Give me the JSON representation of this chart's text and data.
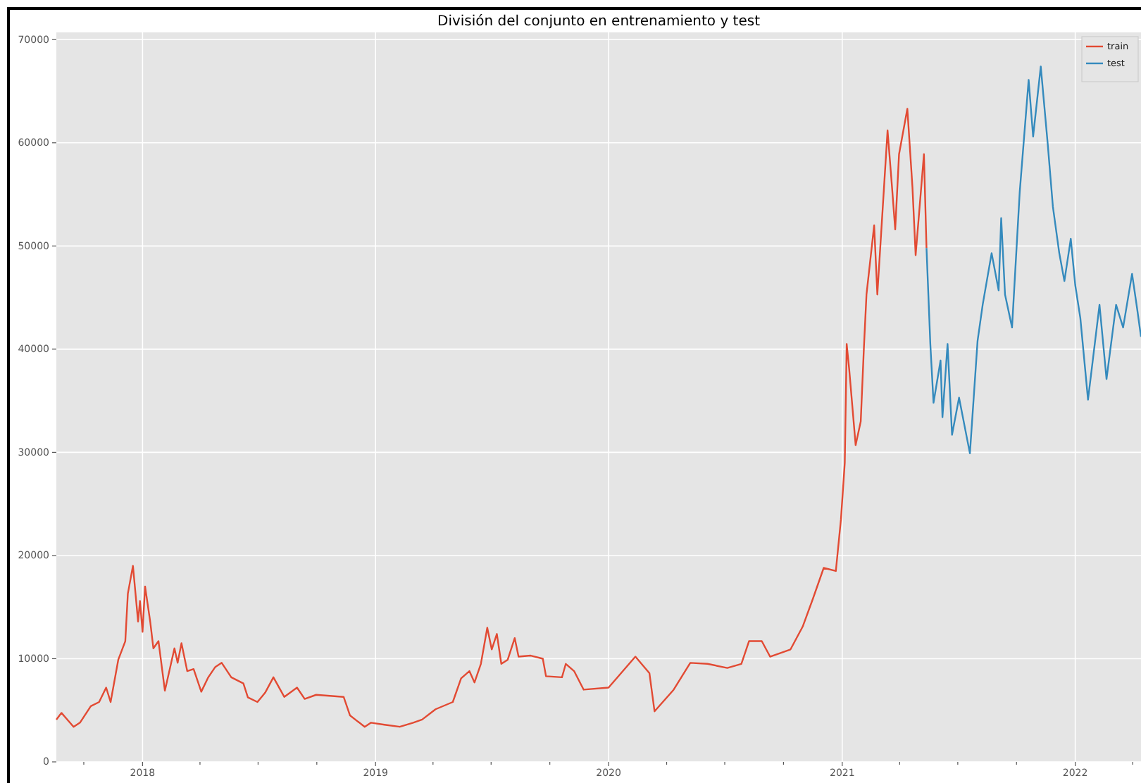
{
  "chart_data": {
    "type": "line",
    "title": "División del conjunto en entrenamiento y test",
    "xlim": [
      "2017-08-19",
      "2022-04-14"
    ],
    "xticks": [
      {
        "value": "2017-10-01",
        "label": null
      },
      {
        "value": "2018-01-01",
        "label": "2018"
      },
      {
        "value": "2018-04-01",
        "label": null
      },
      {
        "value": "2018-07-01",
        "label": null
      },
      {
        "value": "2018-10-01",
        "label": null
      },
      {
        "value": "2019-01-01",
        "label": "2019"
      },
      {
        "value": "2019-04-01",
        "label": null
      },
      {
        "value": "2019-07-01",
        "label": null
      },
      {
        "value": "2019-10-01",
        "label": null
      },
      {
        "value": "2020-01-01",
        "label": "2020"
      },
      {
        "value": "2020-04-01",
        "label": null
      },
      {
        "value": "2020-07-01",
        "label": null
      },
      {
        "value": "2020-10-01",
        "label": null
      },
      {
        "value": "2021-01-01",
        "label": "2021"
      },
      {
        "value": "2021-04-01",
        "label": null
      },
      {
        "value": "2021-07-01",
        "label": null
      },
      {
        "value": "2021-10-01",
        "label": null
      },
      {
        "value": "2022-01-01",
        "label": "2022"
      },
      {
        "value": "2022-04-01",
        "label": null
      }
    ],
    "ylim": [
      0,
      70700
    ],
    "yticks": [
      0,
      10000,
      20000,
      30000,
      40000,
      50000,
      60000,
      70000
    ],
    "grid": true,
    "legend": "top right",
    "line_style": "solid",
    "marker": "none",
    "series": [
      {
        "name": "train",
        "color": "#e24a33",
        "x": [
          "2017-08-19",
          "2017-08-27",
          "2017-09-15",
          "2017-09-25",
          "2017-10-12",
          "2017-10-25",
          "2017-11-05",
          "2017-11-12",
          "2017-11-24",
          "2017-12-05",
          "2017-12-09",
          "2017-12-17",
          "2017-12-25",
          "2017-12-28",
          "2018-01-01",
          "2018-01-05",
          "2018-01-13",
          "2018-01-18",
          "2018-01-26",
          "2018-02-05",
          "2018-02-20",
          "2018-02-25",
          "2018-03-03",
          "2018-03-12",
          "2018-03-22",
          "2018-04-03",
          "2018-04-14",
          "2018-04-25",
          "2018-05-05",
          "2018-05-20",
          "2018-06-08",
          "2018-06-15",
          "2018-06-30",
          "2018-07-12",
          "2018-07-25",
          "2018-08-11",
          "2018-08-31",
          "2018-09-12",
          "2018-09-30",
          "2018-11-12",
          "2018-11-22",
          "2018-12-15",
          "2018-12-25",
          "2019-01-15",
          "2019-02-08",
          "2019-03-01",
          "2019-03-15",
          "2019-04-05",
          "2019-05-02",
          "2019-05-15",
          "2019-05-28",
          "2019-06-05",
          "2019-06-15",
          "2019-06-25",
          "2019-07-02",
          "2019-07-10",
          "2019-07-17",
          "2019-07-27",
          "2019-08-07",
          "2019-08-13",
          "2019-09-01",
          "2019-09-20",
          "2019-09-25",
          "2019-10-20",
          "2019-10-26",
          "2019-11-08",
          "2019-11-23",
          "2020-01-01",
          "2020-02-12",
          "2020-03-05",
          "2020-03-13",
          "2020-04-12",
          "2020-05-08",
          "2020-06-04",
          "2020-07-05",
          "2020-07-27",
          "2020-08-08",
          "2020-08-28",
          "2020-09-10",
          "2020-10-12",
          "2020-10-31",
          "2020-11-16",
          "2020-12-03",
          "2020-12-22",
          "2020-12-30",
          "2021-01-05",
          "2021-01-08",
          "2021-01-12",
          "2021-01-22",
          "2021-01-30",
          "2021-02-04",
          "2021-02-08",
          "2021-02-20",
          "2021-02-25",
          "2021-03-13",
          "2021-03-20",
          "2021-03-25",
          "2021-03-31",
          "2021-04-13",
          "2021-04-21",
          "2021-04-26",
          "2021-05-09",
          "2021-05-13"
        ],
        "values": [
          4100,
          4750,
          3400,
          3800,
          5400,
          5800,
          7200,
          5800,
          9900,
          11700,
          16300,
          19000,
          13600,
          15600,
          12600,
          17000,
          13600,
          11000,
          11700,
          6900,
          11000,
          9600,
          11500,
          8800,
          9000,
          6800,
          8200,
          9200,
          9600,
          8200,
          7600,
          6250,
          5800,
          6700,
          8200,
          6300,
          7200,
          6100,
          6500,
          6300,
          4500,
          3400,
          3800,
          3600,
          3400,
          3800,
          4100,
          5100,
          5800,
          8100,
          8800,
          7700,
          9500,
          13000,
          10900,
          12400,
          9500,
          9900,
          12000,
          10200,
          10300,
          10000,
          8300,
          8200,
          9500,
          8800,
          7000,
          7200,
          10200,
          8600,
          4900,
          7000,
          9600,
          9500,
          9100,
          9500,
          11700,
          11700,
          10200,
          10900,
          13100,
          15800,
          18800,
          18500,
          23500,
          29000,
          40500,
          38000,
          30700,
          33000,
          40200,
          45300,
          52000,
          45300,
          61200,
          55700,
          51600,
          58900,
          63300,
          55700,
          49100,
          58900,
          49800
        ]
      },
      {
        "name": "test",
        "color": "#348abd",
        "x": [
          "2021-05-13",
          "2021-05-19",
          "2021-05-24",
          "2021-06-04",
          "2021-06-07",
          "2021-06-15",
          "2021-06-22",
          "2021-07-03",
          "2021-07-20",
          "2021-08-01",
          "2021-08-09",
          "2021-08-23",
          "2021-09-03",
          "2021-09-07",
          "2021-09-13",
          "2021-09-24",
          "2021-10-06",
          "2021-10-20",
          "2021-10-27",
          "2021-11-08",
          "2021-11-19",
          "2021-11-27",
          "2021-12-07",
          "2021-12-15",
          "2021-12-25",
          "2022-01-01",
          "2022-01-09",
          "2022-01-21",
          "2022-02-08",
          "2022-02-19",
          "2022-03-06",
          "2022-03-17",
          "2022-03-31",
          "2022-04-08",
          "2022-04-14"
        ],
        "values": [
          49800,
          40500,
          34800,
          38900,
          33400,
          40500,
          31700,
          35300,
          29900,
          40800,
          44300,
          49300,
          45700,
          52700,
          45300,
          42100,
          55200,
          66100,
          60600,
          67400,
          59800,
          53800,
          49300,
          46600,
          50700,
          46200,
          43000,
          35100,
          44300,
          37100,
          44300,
          42100,
          47300,
          43900,
          41200
        ]
      }
    ]
  }
}
